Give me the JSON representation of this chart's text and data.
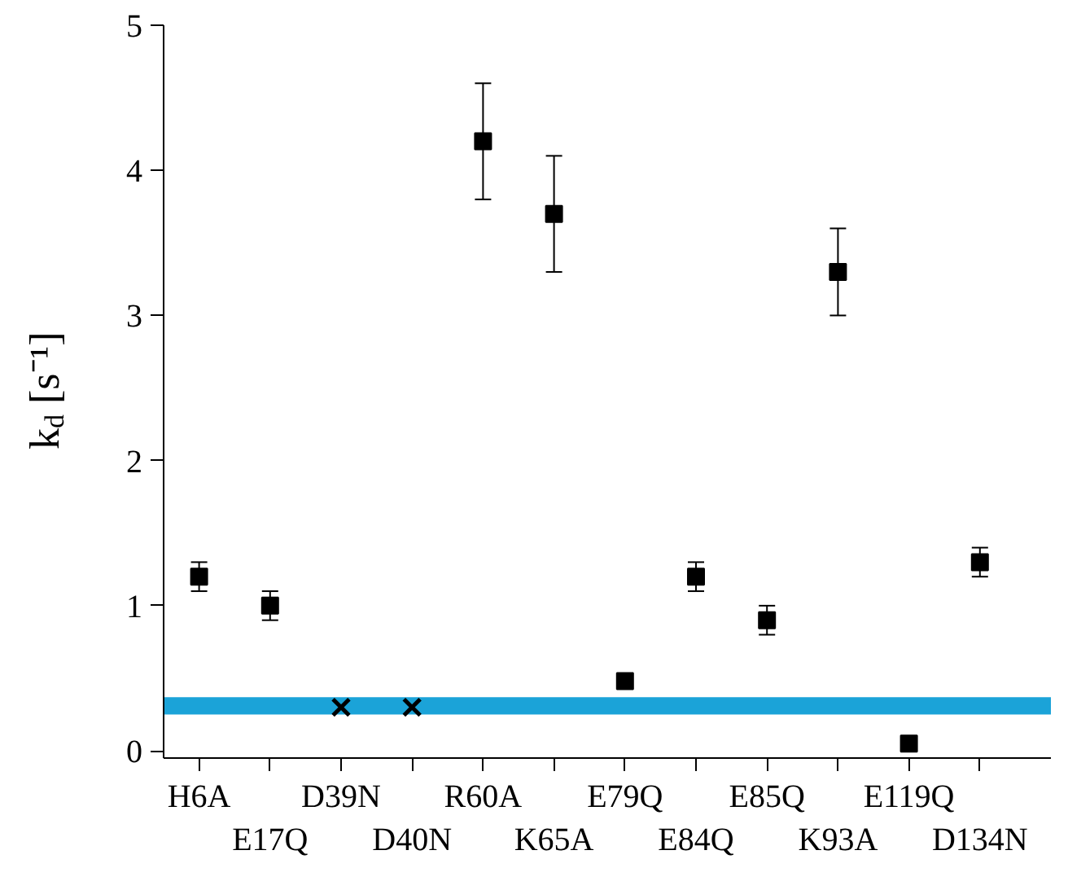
{
  "chart_data": {
    "type": "scatter",
    "ylabel": "k$_{d}$ [s⁻¹]",
    "categories": [
      "H6A",
      "E17Q",
      "D39N",
      "D40N",
      "R60A",
      "K65A",
      "E79Q",
      "E84Q",
      "E85Q",
      "K93A",
      "E119Q",
      "D134N"
    ],
    "series": [
      {
        "color": "#000000",
        "marker": "square",
        "values": [
          1.2,
          1.0,
          null,
          null,
          4.2,
          3.7,
          0.48,
          1.2,
          0.9,
          3.3,
          0.05,
          1.3
        ],
        "errors": [
          0.1,
          0.1,
          null,
          null,
          0.4,
          0.4,
          null,
          0.1,
          0.1,
          0.3,
          null,
          0.1
        ]
      },
      {
        "color": "#000000",
        "marker": "cross",
        "values": [
          null,
          null,
          0.3,
          0.3,
          null,
          null,
          null,
          null,
          null,
          null,
          null,
          null
        ]
      }
    ],
    "bands": [
      {
        "axis": "y",
        "from": 0.25,
        "to": 0.37,
        "color": "#1ba3d8"
      }
    ],
    "ylim": [
      -0.05,
      5
    ],
    "yticks": [
      0,
      1,
      2,
      3,
      4,
      5
    ],
    "grid": false
  }
}
